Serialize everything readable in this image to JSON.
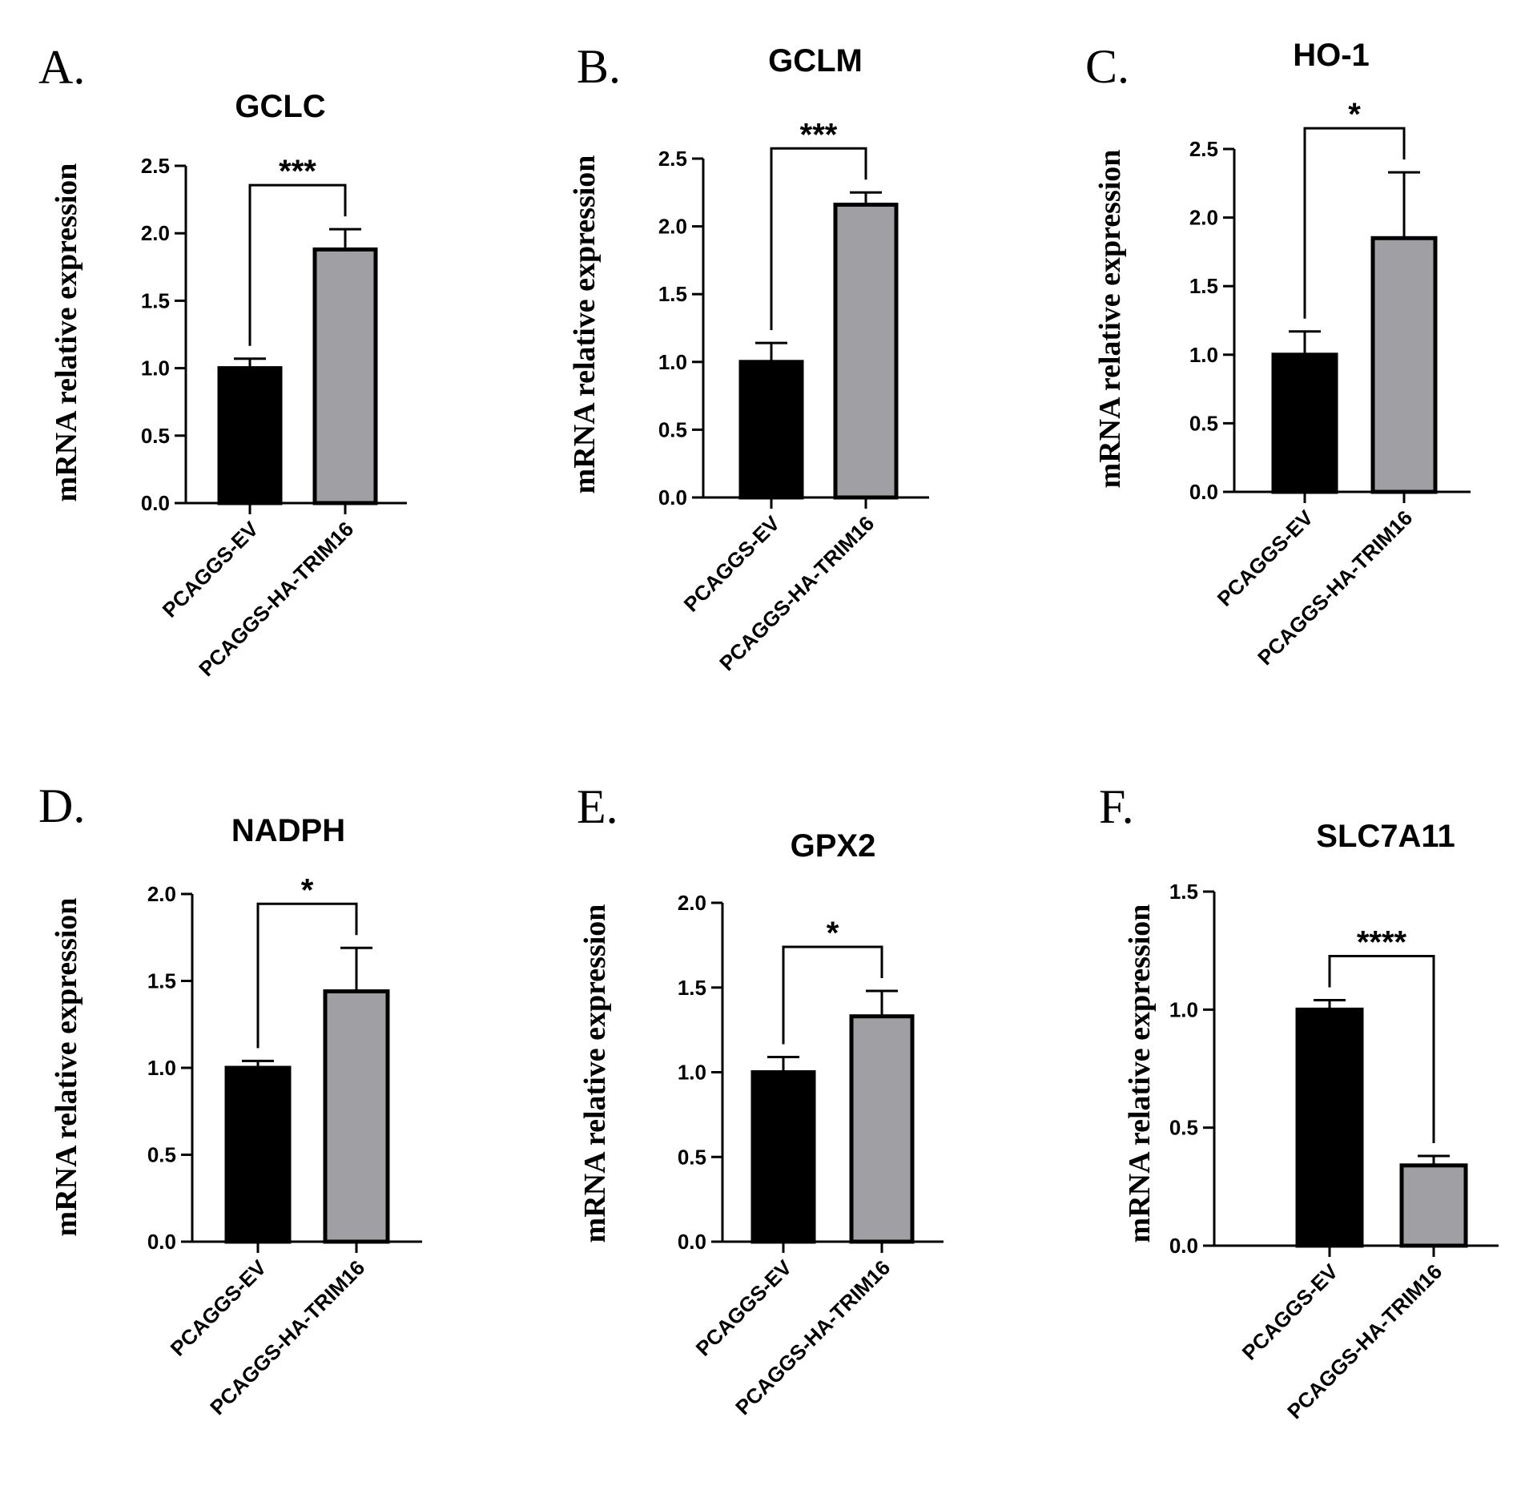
{
  "chart_data": [
    {
      "panel": "A.",
      "type": "bar",
      "title": "GCLC",
      "ylabel": "mRNA relative expression",
      "xlabel": "",
      "categories": [
        "PCAGGS-EV",
        "PCAGGS-HA-TRIM16"
      ],
      "values": [
        1.0,
        1.88
      ],
      "errors": [
        0.07,
        0.15
      ],
      "bar_colors": [
        "#000000",
        "#a0a0a4"
      ],
      "ylim": [
        0,
        2.5
      ],
      "yticks": [
        0.0,
        0.5,
        1.0,
        1.5,
        2.0,
        2.5
      ],
      "ytick_labels": [
        "0.0",
        "0.5",
        "1.0",
        "1.5",
        "2.0",
        "2.5"
      ],
      "significance": "***",
      "grid": false
    },
    {
      "panel": "B.",
      "type": "bar",
      "title": "GCLM",
      "ylabel": "mRNA relative expression",
      "xlabel": "",
      "categories": [
        "PCAGGS-EV",
        "PCAGGS-HA-TRIM16"
      ],
      "values": [
        1.0,
        2.16
      ],
      "errors": [
        0.14,
        0.09
      ],
      "bar_colors": [
        "#000000",
        "#a0a0a4"
      ],
      "ylim": [
        0,
        2.5
      ],
      "yticks": [
        0.0,
        0.5,
        1.0,
        1.5,
        2.0,
        2.5
      ],
      "ytick_labels": [
        "0.0",
        "0.5",
        "1.0",
        "1.5",
        "2.0",
        "2.5"
      ],
      "significance": "***",
      "grid": false
    },
    {
      "panel": "C.",
      "type": "bar",
      "title": "HO-1",
      "ylabel": "mRNA relative expression",
      "xlabel": "",
      "categories": [
        "PCAGGS-EV",
        "PCAGGS-HA-TRIM16"
      ],
      "values": [
        1.0,
        1.85
      ],
      "errors": [
        0.17,
        0.48
      ],
      "bar_colors": [
        "#000000",
        "#a0a0a4"
      ],
      "ylim": [
        0,
        2.5
      ],
      "yticks": [
        0.0,
        0.5,
        1.0,
        1.5,
        2.0,
        2.5
      ],
      "ytick_labels": [
        "0.0",
        "0.5",
        "1.0",
        "1.5",
        "2.0",
        "2.5"
      ],
      "significance": "*",
      "grid": false
    },
    {
      "panel": "D.",
      "type": "bar",
      "title": "NADPH",
      "ylabel": "mRNA relative expression",
      "xlabel": "",
      "categories": [
        "PCAGGS-EV",
        "PCAGGS-HA-TRIM16"
      ],
      "values": [
        1.0,
        1.44
      ],
      "errors": [
        0.04,
        0.25
      ],
      "bar_colors": [
        "#000000",
        "#a0a0a4"
      ],
      "ylim": [
        0,
        2.0
      ],
      "yticks": [
        0.0,
        0.5,
        1.0,
        1.5,
        2.0
      ],
      "ytick_labels": [
        "0.0",
        "0.5",
        "1.0",
        "1.5",
        "2.0"
      ],
      "significance": "*",
      "grid": false
    },
    {
      "panel": "E.",
      "type": "bar",
      "title": "GPX2",
      "ylabel": "mRNA relative expression",
      "xlabel": "",
      "categories": [
        "PCAGGS-EV",
        "PCAGGS-HA-TRIM16"
      ],
      "values": [
        1.0,
        1.33
      ],
      "errors": [
        0.09,
        0.15
      ],
      "bar_colors": [
        "#000000",
        "#a0a0a4"
      ],
      "ylim": [
        0,
        2.0
      ],
      "yticks": [
        0.0,
        0.5,
        1.0,
        1.5,
        2.0
      ],
      "ytick_labels": [
        "0.0",
        "0.5",
        "1.0",
        "1.5",
        "2.0"
      ],
      "significance": "*",
      "grid": false
    },
    {
      "panel": "F.",
      "type": "bar",
      "title": "SLC7A11",
      "ylabel": "mRNA relative expression",
      "xlabel": "",
      "categories": [
        "PCAGGS-EV",
        "PCAGGS-HA-TRIM16"
      ],
      "values": [
        1.0,
        0.34
      ],
      "errors": [
        0.04,
        0.04
      ],
      "bar_colors": [
        "#000000",
        "#a0a0a4"
      ],
      "ylim": [
        0,
        1.5
      ],
      "yticks": [
        0.0,
        0.5,
        1.0,
        1.5
      ],
      "ytick_labels": [
        "0.0",
        "0.5",
        "1.0",
        "1.5"
      ],
      "significance": "****",
      "grid": false
    }
  ]
}
